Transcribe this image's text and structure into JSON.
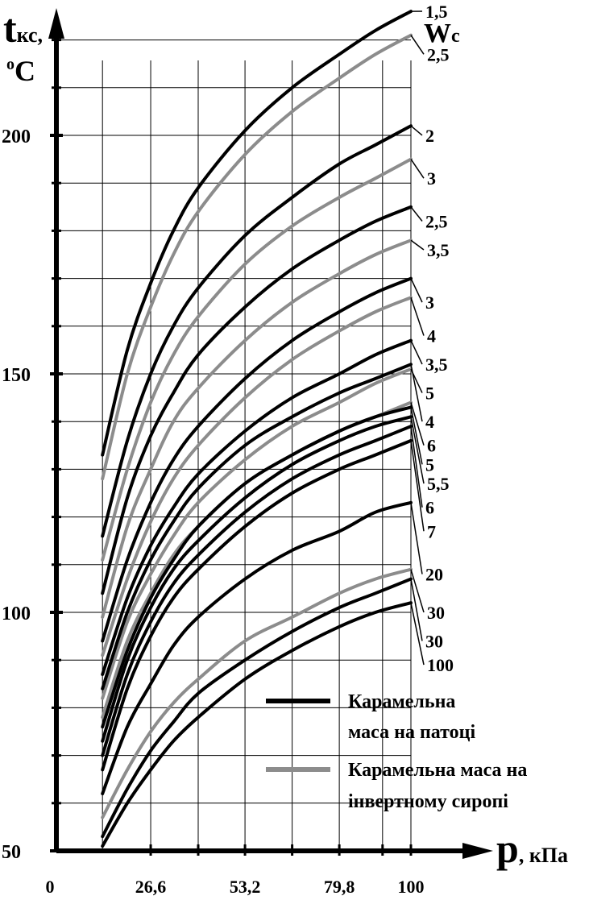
{
  "chart_data": {
    "type": "line",
    "ylabel": {
      "t": "t",
      "sub": "кс,",
      "unit_deg": "o",
      "unit_c": "C"
    },
    "xlabel": {
      "p": "p",
      "unit": ", кПа"
    },
    "curve_key_label": "Wc",
    "xlim": [
      0,
      100
    ],
    "ylim": [
      50,
      220
    ],
    "x_ticks": [
      "0",
      "26,6",
      "53,2",
      "79,8",
      "100"
    ],
    "x_tick_values": [
      0,
      26.6,
      53.2,
      79.8,
      100
    ],
    "y_ticks": [
      "50",
      "100",
      "150",
      "200"
    ],
    "y_tick_values": [
      50,
      100,
      150,
      200
    ],
    "grid": true,
    "x": [
      13,
      20,
      26.6,
      33,
      40,
      53.2,
      66.5,
      79.8,
      90,
      100
    ],
    "legend": [
      {
        "name": "Карамельна маса на патоці",
        "color": "#000000"
      },
      {
        "name": "Карамельна маса на інвертному сиропі",
        "color": "#8c8c8c"
      }
    ],
    "legend_lines": {
      "black": [
        "Карамельна",
        "маса на патоці"
      ],
      "gray": [
        "Карамельна маса на",
        "інвертному сиропі"
      ]
    },
    "series": [
      {
        "name": "1,5",
        "color": "#000000",
        "values": [
          133,
          155,
          169,
          180,
          189,
          201,
          210,
          217,
          222,
          226
        ]
      },
      {
        "name": "2,5",
        "color": "#8c8c8c",
        "values": [
          128,
          150,
          164,
          175,
          184,
          196,
          205,
          212,
          217,
          221
        ]
      },
      {
        "name": "2",
        "color": "#000000",
        "values": [
          116,
          136,
          150,
          160,
          168,
          179,
          187,
          194,
          198,
          202
        ]
      },
      {
        "name": "3",
        "color": "#8c8c8c",
        "values": [
          111,
          130,
          144,
          154,
          162,
          173,
          181,
          187,
          191,
          195
        ]
      },
      {
        "name": "2,5",
        "color": "#000000",
        "values": [
          104,
          124,
          137,
          146,
          154,
          164,
          172,
          178,
          182,
          185
        ]
      },
      {
        "name": "3,5",
        "color": "#8c8c8c",
        "values": [
          99,
          118,
          130,
          140,
          147,
          157,
          165,
          171,
          175,
          178
        ]
      },
      {
        "name": "3",
        "color": "#000000",
        "values": [
          94,
          111,
          123,
          132,
          139,
          149,
          157,
          163,
          167,
          170
        ]
      },
      {
        "name": "4",
        "color": "#8c8c8c",
        "values": [
          91,
          107,
          119,
          128,
          135,
          145,
          153,
          159,
          163,
          166
        ]
      },
      {
        "name": "3,5",
        "color": "#000000",
        "values": [
          87,
          103,
          114,
          122,
          129,
          138,
          145,
          150,
          154,
          157
        ]
      },
      {
        "name": "5",
        "color": "#8c8c8c",
        "values": [
          82,
          98,
          108,
          116,
          123,
          132,
          139,
          144,
          148,
          151
        ]
      },
      {
        "name": "4",
        "color": "#000000",
        "values": [
          84,
          100,
          111,
          119,
          126,
          135,
          141,
          146,
          149,
          152
        ]
      },
      {
        "name": "6",
        "color": "#8c8c8c",
        "values": [
          78,
          94,
          104,
          112,
          118,
          127,
          133,
          138,
          141,
          144
        ]
      },
      {
        "name": "5",
        "color": "#000000",
        "values": [
          76,
          92,
          103,
          111,
          118,
          127,
          133,
          138,
          141,
          143
        ]
      },
      {
        "name": "5,5",
        "color": "#000000",
        "values": [
          73,
          90,
          101,
          109,
          115,
          124,
          131,
          136,
          139,
          141
        ]
      },
      {
        "name": "6",
        "color": "#000000",
        "values": [
          70,
          87,
          98,
          106,
          112,
          121,
          128,
          133,
          136,
          139
        ]
      },
      {
        "name": "7",
        "color": "#000000",
        "values": [
          67,
          84,
          95,
          103,
          109,
          118,
          125,
          130,
          133,
          136
        ]
      },
      {
        "name": "20",
        "color": "#000000",
        "values": [
          62,
          76,
          85,
          93,
          99,
          107,
          113,
          117,
          121,
          123
        ]
      },
      {
        "name": "30",
        "color": "#8c8c8c",
        "values": [
          57,
          67,
          75,
          81,
          86,
          94,
          99,
          104,
          107,
          109
        ]
      },
      {
        "name": "30",
        "color": "#000000",
        "values": [
          53,
          63,
          71,
          77,
          83,
          90,
          96,
          101,
          104,
          107
        ]
      },
      {
        "name": "100",
        "color": "#000000",
        "values": [
          51,
          60,
          67,
          73,
          78,
          86,
          92,
          97,
          100,
          102
        ]
      }
    ],
    "label_values": [
      225,
      216,
      199,
      190,
      181,
      175,
      164,
      157,
      151,
      145,
      139,
      134,
      130,
      126,
      121,
      116,
      107,
      99,
      93,
      88
    ]
  }
}
